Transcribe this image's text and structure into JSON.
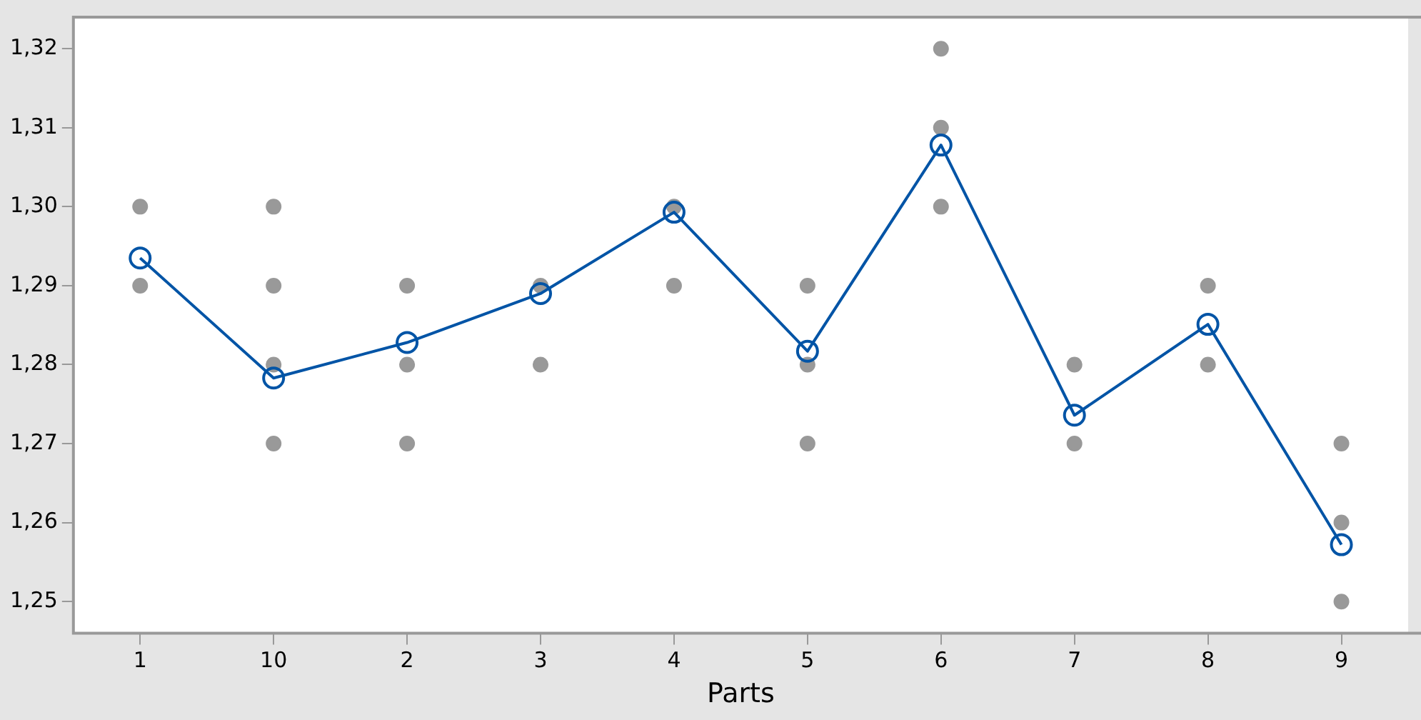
{
  "chart_data": {
    "type": "line",
    "xlabel": "Parts",
    "categories": [
      "1",
      "10",
      "2",
      "3",
      "4",
      "5",
      "6",
      "7",
      "8",
      "9"
    ],
    "series": [
      {
        "type": "scatter",
        "color": "#999999",
        "marker": "circle",
        "x": [
          "1",
          "1",
          "10",
          "10",
          "10",
          "10",
          "2",
          "2",
          "2",
          "3",
          "3",
          "4",
          "4",
          "5",
          "5",
          "5",
          "6",
          "6",
          "6",
          "7",
          "7",
          "8",
          "8",
          "9",
          "9",
          "9"
        ],
        "values": [
          1.3,
          1.29,
          1.3,
          1.29,
          1.28,
          1.27,
          1.29,
          1.28,
          1.27,
          1.29,
          1.28,
          1.3,
          1.29,
          1.29,
          1.28,
          1.27,
          1.32,
          1.31,
          1.3,
          1.28,
          1.27,
          1.29,
          1.28,
          1.27,
          1.26,
          1.25
        ]
      },
      {
        "color": "#0054a6",
        "marker": "circle",
        "line_style": "solid",
        "values": [
          1.2935,
          1.2783,
          1.2828,
          1.289,
          1.2993,
          1.2817,
          1.3078,
          1.2736,
          1.2851,
          1.2572
        ]
      }
    ],
    "ylim": [
      1.246,
      1.324
    ],
    "yticks": [
      {
        "value": 1.25,
        "label": "1,25"
      },
      {
        "value": 1.26,
        "label": "1,26"
      },
      {
        "value": 1.27,
        "label": "1,27"
      },
      {
        "value": 1.28,
        "label": "1,28"
      },
      {
        "value": 1.29,
        "label": "1,29"
      },
      {
        "value": 1.3,
        "label": "1,30"
      },
      {
        "value": 1.31,
        "label": "1,31"
      },
      {
        "value": 1.32,
        "label": "1,32"
      }
    ],
    "legend": false
  }
}
